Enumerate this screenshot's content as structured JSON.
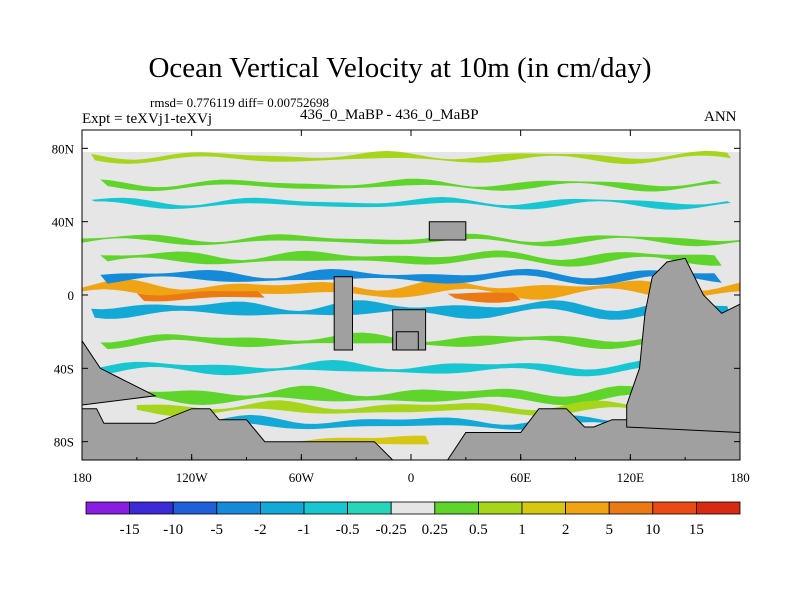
{
  "chart_data": {
    "type": "heatmap",
    "title": "Ocean Vertical Velocity at 10m (in cm/day)",
    "stats_text": "rmsd= 0.776119 diff= 0.00752698",
    "left_label": "Expt = teXVj1-teXVj",
    "center_label": "436_0_MaBP - 436_0_MaBP",
    "right_label": "ANN",
    "x_ticks": [
      "180",
      "120W",
      "60W",
      "0",
      "60E",
      "120E",
      "180"
    ],
    "x_tick_values": [
      -180,
      -120,
      -60,
      0,
      60,
      120,
      180
    ],
    "y_ticks": [
      "80N",
      "40N",
      "0",
      "40S",
      "80S"
    ],
    "y_tick_values": [
      80,
      40,
      0,
      -40,
      -80
    ],
    "xlim": [
      -180,
      180
    ],
    "ylim": [
      -90,
      90
    ],
    "colorbar_labels": [
      "-15",
      "-10",
      "-5",
      "-2",
      "-1",
      "-0.5",
      "-0.25",
      "0.25",
      "0.5",
      "1",
      "2",
      "5",
      "10",
      "15"
    ],
    "colorbar_colors": [
      "#8a1ee0",
      "#3b2ad6",
      "#1f5fd8",
      "#148ad9",
      "#12a9d6",
      "#17c6d0",
      "#27d6b8",
      "#e6e6e6",
      "#5fd42a",
      "#a6d51c",
      "#d5c712",
      "#f0a313",
      "#ec7a14",
      "#ea4a13",
      "#d82a10"
    ],
    "land_color": "#a0a0a0",
    "bands": [
      {
        "lat": 3,
        "lon1": -180,
        "lon2": 180,
        "level": 11,
        "width": 4
      },
      {
        "lat": 0,
        "lon1": -150,
        "lon2": -80,
        "level": 12,
        "width": 3
      },
      {
        "lat": 0,
        "lon1": 20,
        "lon2": 60,
        "level": 12,
        "width": 3
      },
      {
        "lat": -8,
        "lon1": -175,
        "lon2": 175,
        "level": 4,
        "width": 4
      },
      {
        "lat": 10,
        "lon1": -170,
        "lon2": 170,
        "level": 3,
        "width": 3
      },
      {
        "lat": 20,
        "lon1": -170,
        "lon2": 170,
        "level": 8,
        "width": 3
      },
      {
        "lat": 30,
        "lon1": -180,
        "lon2": 180,
        "level": 8,
        "width": 2
      },
      {
        "lat": 50,
        "lon1": -175,
        "lon2": 175,
        "level": 5,
        "width": 2
      },
      {
        "lat": 60,
        "lon1": -170,
        "lon2": 170,
        "level": 8,
        "width": 2
      },
      {
        "lat": 75,
        "lon1": -175,
        "lon2": 175,
        "level": 9,
        "width": 2
      },
      {
        "lat": -25,
        "lon1": -170,
        "lon2": 170,
        "level": 8,
        "width": 3
      },
      {
        "lat": -40,
        "lon1": -175,
        "lon2": 175,
        "level": 5,
        "width": 3
      },
      {
        "lat": -55,
        "lon1": -180,
        "lon2": 180,
        "level": 8,
        "width": 4
      },
      {
        "lat": -62,
        "lon1": -150,
        "lon2": 150,
        "level": 9,
        "width": 3
      },
      {
        "lat": -70,
        "lon1": -130,
        "lon2": 130,
        "level": 4,
        "width": 3
      },
      {
        "lat": -80,
        "lon1": -70,
        "lon2": 10,
        "level": 10,
        "width": 3
      }
    ]
  }
}
